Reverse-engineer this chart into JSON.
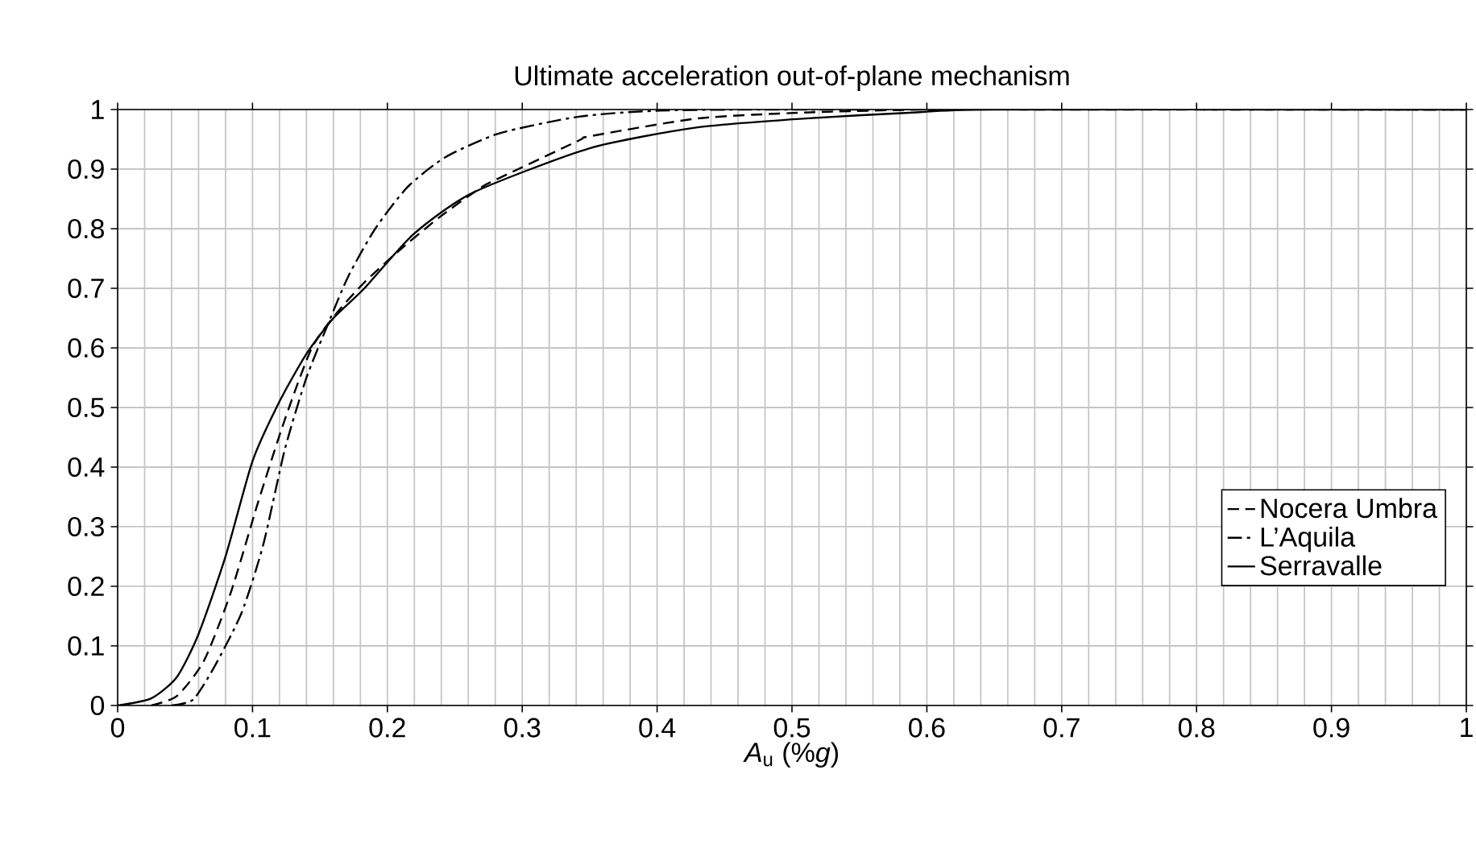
{
  "chart_data": {
    "type": "line",
    "title": "Ultimate acceleration out-of-plane mechanism",
    "xlabel": "*A*$_{u}$ (%*g*)",
    "xlim": [
      0,
      1
    ],
    "ylim": [
      0,
      1
    ],
    "xticks": [
      0,
      0.1,
      0.2,
      0.3,
      0.4,
      0.5,
      0.6,
      0.7,
      0.8,
      0.9,
      1
    ],
    "yticks": [
      0,
      0.1,
      0.2,
      0.3,
      0.4,
      0.5,
      0.6,
      0.7,
      0.8,
      0.9,
      1
    ],
    "grid": true,
    "legend": "bottom right",
    "marker": "none",
    "series": [
      {
        "name": "Nocera Umbra",
        "color": "#000000",
        "line_style": "dashed",
        "x": [
          0.025,
          0.044,
          0.064,
          0.084,
          0.104,
          0.124,
          0.144,
          0.163,
          0.183,
          0.207,
          0.239,
          0.27,
          0.283,
          0.342,
          0.35,
          0.43,
          0.51,
          0.6,
          0.7,
          1
        ],
        "values": [
          0,
          0.016,
          0.075,
          0.19,
          0.34,
          0.48,
          0.6,
          0.66,
          0.71,
          0.76,
          0.82,
          0.87,
          0.885,
          0.948,
          0.955,
          0.985,
          0.995,
          1,
          1,
          1
        ]
      },
      {
        "name": "L’Aquila",
        "color": "#000000",
        "line_style": "dashdotted",
        "x": [
          0.04,
          0.056,
          0.072,
          0.092,
          0.108,
          0.124,
          0.14,
          0.156,
          0.171,
          0.191,
          0.215,
          0.243,
          0.283,
          0.342,
          0.4,
          0.5,
          1
        ],
        "values": [
          0,
          0.01,
          0.066,
          0.156,
          0.27,
          0.43,
          0.55,
          0.64,
          0.72,
          0.8,
          0.87,
          0.92,
          0.96,
          0.988,
          0.998,
          1,
          1
        ]
      },
      {
        "name": "Serravalle",
        "color": "#000000",
        "line_style": "solid",
        "x": [
          0,
          0.025,
          0.044,
          0.06,
          0.08,
          0.1,
          0.12,
          0.14,
          0.16,
          0.183,
          0.219,
          0.263,
          0.35,
          0.43,
          0.51,
          0.59,
          0.65,
          1
        ],
        "values": [
          0,
          0.012,
          0.048,
          0.12,
          0.25,
          0.41,
          0.51,
          0.59,
          0.65,
          0.7,
          0.79,
          0.86,
          0.935,
          0.97,
          0.985,
          0.995,
          1,
          1
        ]
      }
    ]
  }
}
